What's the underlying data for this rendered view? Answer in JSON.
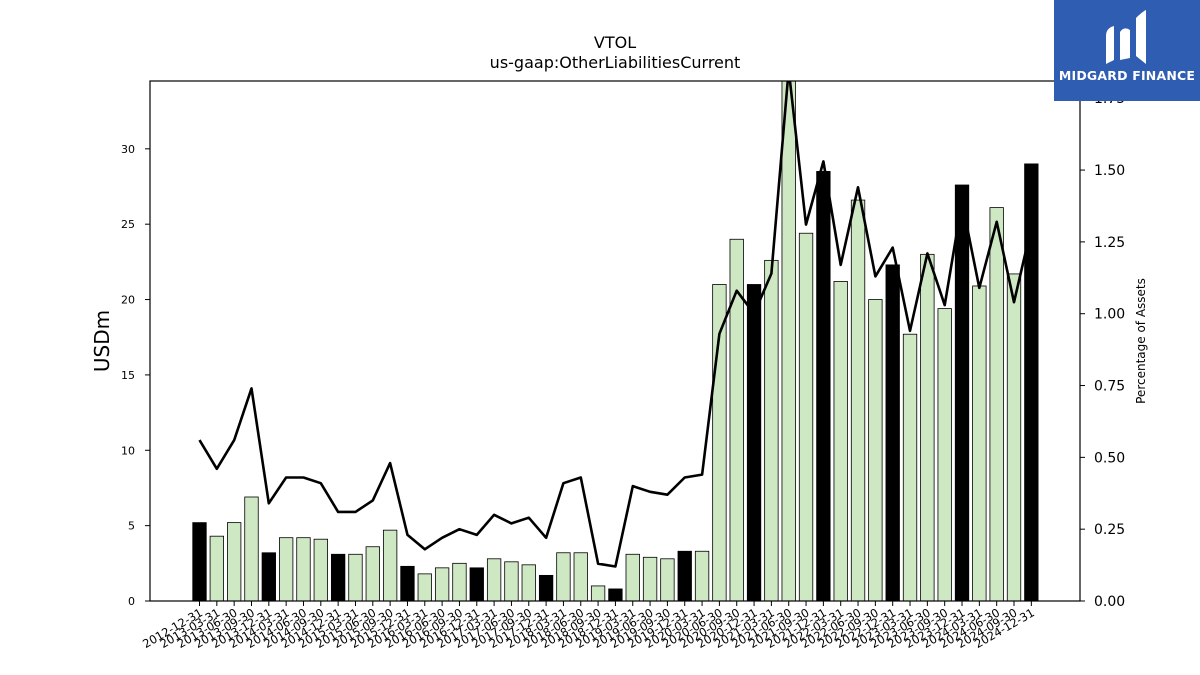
{
  "chart_data": {
    "type": "bar",
    "title": "VTOL",
    "subtitle": "us-gaap:OtherLiabilitiesCurrent",
    "ylabel": "USDm",
    "y2label": "Percentage of Assets",
    "ylim": [
      0,
      34.5
    ],
    "y2lim": [
      0,
      1.81
    ],
    "yticks": [
      0,
      5,
      10,
      15,
      20,
      25,
      30
    ],
    "y2ticks": [
      0.0,
      0.25,
      0.5,
      0.75,
      1.0,
      1.25,
      1.5,
      1.75
    ],
    "y2tick_labels": [
      "0.00",
      "0.25",
      "0.50",
      "0.75",
      "1.00",
      "1.25",
      "1.50",
      "1.75"
    ],
    "grid": false,
    "categories": [
      "2012-12-31",
      "2013-03-31",
      "2013-06-30",
      "2013-09-30",
      "2013-12-31",
      "2014-03-31",
      "2014-06-30",
      "2014-09-30",
      "2014-12-31",
      "2015-03-31",
      "2015-06-30",
      "2015-09-30",
      "2015-12-31",
      "2016-03-31",
      "2016-06-30",
      "2016-09-30",
      "2016-12-31",
      "2017-03-31",
      "2017-06-30",
      "2017-09-30",
      "2017-12-31",
      "2018-03-31",
      "2018-06-30",
      "2018-09-30",
      "2018-12-31",
      "2019-03-31",
      "2019-06-30",
      "2019-09-30",
      "2019-12-31",
      "2020-03-31",
      "2020-06-30",
      "2020-09-30",
      "2020-12-31",
      "2021-03-31",
      "2021-06-30",
      "2021-09-30",
      "2021-12-31",
      "2022-03-31",
      "2022-06-30",
      "2022-09-30",
      "2022-12-31",
      "2023-03-31",
      "2023-06-30",
      "2023-09-30",
      "2023-12-31",
      "2024-03-31",
      "2024-06-30",
      "2024-09-30",
      "2024-12-31"
    ],
    "series": [
      {
        "values": [
          5.2,
          4.3,
          5.2,
          6.9,
          3.2,
          4.2,
          4.2,
          4.1,
          3.1,
          3.1,
          3.6,
          4.7,
          2.3,
          1.8,
          2.2,
          2.5,
          2.2,
          2.8,
          2.6,
          2.4,
          1.7,
          3.2,
          3.2,
          1.0,
          0.8,
          3.1,
          2.9,
          2.8,
          3.3,
          3.3,
          21.0,
          24.0,
          21.0,
          22.6,
          34.9,
          24.4,
          28.5,
          21.2,
          26.6,
          20.0,
          22.3,
          17.7,
          23.0,
          19.4,
          27.6,
          20.9,
          26.1,
          21.7,
          29.0
        ],
        "year_end": [
          true,
          false,
          false,
          false,
          true,
          false,
          false,
          false,
          true,
          false,
          false,
          false,
          true,
          false,
          false,
          false,
          true,
          false,
          false,
          false,
          true,
          false,
          false,
          false,
          true,
          false,
          false,
          false,
          true,
          false,
          false,
          false,
          true,
          false,
          false,
          false,
          true,
          false,
          false,
          false,
          true,
          false,
          false,
          false,
          true,
          false,
          false,
          false,
          true
        ]
      },
      {
        "axis": "right",
        "type": "line",
        "values": [
          0.56,
          0.46,
          0.56,
          0.74,
          0.34,
          0.43,
          0.43,
          0.41,
          0.31,
          0.31,
          0.35,
          0.48,
          0.23,
          0.18,
          0.22,
          0.25,
          0.23,
          0.3,
          0.27,
          0.29,
          0.22,
          0.41,
          0.43,
          0.13,
          0.12,
          0.4,
          0.38,
          0.37,
          0.43,
          0.44,
          0.93,
          1.08,
          1.0,
          1.14,
          1.85,
          1.31,
          1.53,
          1.17,
          1.44,
          1.13,
          1.23,
          0.94,
          1.21,
          1.03,
          1.39,
          1.09,
          1.32,
          1.04,
          1.3
        ]
      }
    ],
    "colors": {
      "bar_quarter": "#cfe8c4",
      "bar_year_end": "#000000",
      "bar_edge": "#000000",
      "line": "#000000"
    }
  },
  "logo": {
    "text": "MIDGARD FINANCE",
    "color": "#2f5db1"
  }
}
